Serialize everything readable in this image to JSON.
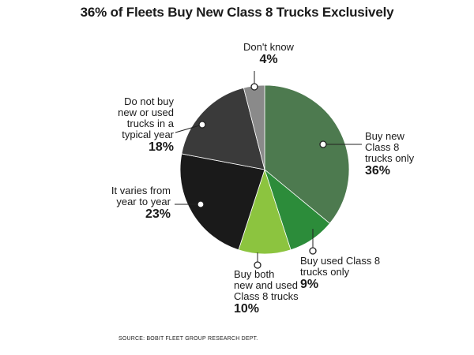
{
  "chart_data": {
    "type": "pie",
    "title": "36% of Fleets Buy New Class 8 Trucks Exclusively",
    "slices": [
      {
        "label": "Buy new Class 8 trucks only",
        "value": 36,
        "value_label": "36%",
        "color": "#4d7a4f"
      },
      {
        "label": "Buy used Class 8 trucks only",
        "value": 9,
        "value_label": "9%",
        "color": "#2c8c3a"
      },
      {
        "label": "Buy both new and used Class 8 trucks",
        "value": 10,
        "value_label": "10%",
        "color": "#8cc43f"
      },
      {
        "label": "It varies from year to year",
        "value": 23,
        "value_label": "23%",
        "color": "#1a1a1a"
      },
      {
        "label": "Do not buy new or used trucks in a typical year",
        "value": 18,
        "value_label": "18%",
        "color": "#3a3a3a"
      },
      {
        "label": "Don't know",
        "value": 4,
        "value_label": "4%",
        "color": "#8a8a8a"
      }
    ],
    "source": "SOURCE: BOBIT FLEET GROUP RESEARCH DEPT."
  },
  "labels": {
    "new_only": [
      "Buy new",
      "Class 8",
      "trucks only"
    ],
    "used_only": [
      "Buy used Class 8",
      "trucks only"
    ],
    "both": [
      "Buy both",
      "new and used",
      "Class 8 trucks"
    ],
    "varies": [
      "It varies from",
      "year to year"
    ],
    "do_not_buy": [
      "Do not buy",
      "new or used",
      "trucks in a",
      "typical year"
    ],
    "dont_know": [
      "Don't know"
    ]
  }
}
